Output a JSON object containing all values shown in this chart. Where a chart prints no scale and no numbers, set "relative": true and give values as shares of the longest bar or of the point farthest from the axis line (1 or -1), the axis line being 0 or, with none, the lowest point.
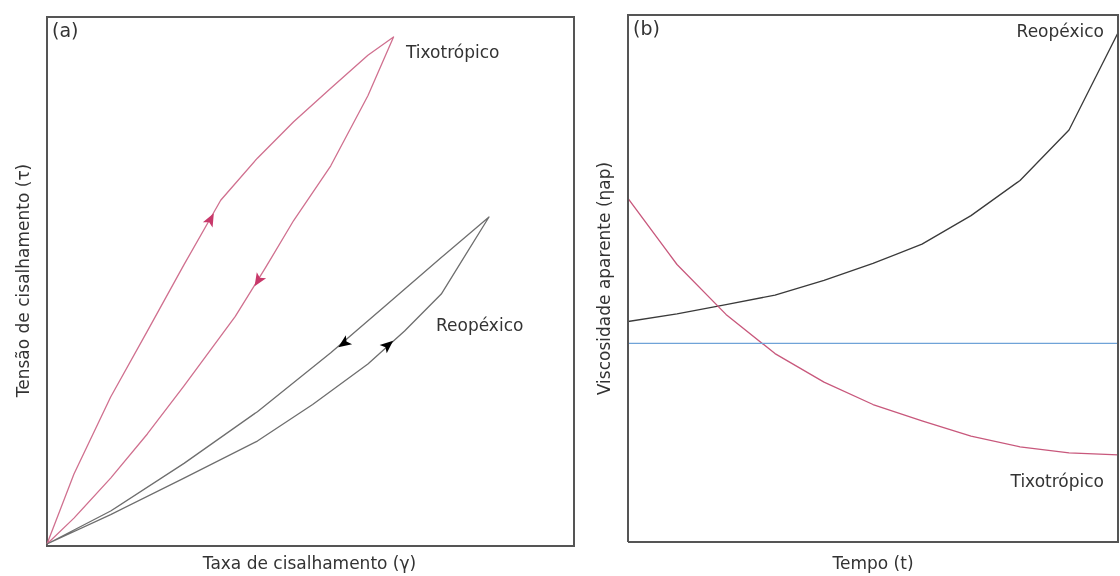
{
  "chart_data": [
    {
      "type": "other",
      "title": "(a)",
      "xlabel": "Taxa de cisalhamento (γ)",
      "ylabel": "Tensão de cisalhamento (τ)",
      "annotations": [
        "Tixotrópico",
        "Reopéxico"
      ]
    },
    {
      "type": "line",
      "title": "(b)",
      "xlabel": "Tempo (t)",
      "ylabel": "Viscosidade aparente (ηap)",
      "relative": true,
      "categories": [
        null,
        null,
        null,
        null,
        null,
        null,
        null,
        null,
        null,
        null,
        null
      ],
      "series": [
        {
          "name": "Reopéxico",
          "color": "#3a3a3a",
          "values": [
            0.433,
            0.448,
            0.466,
            0.485,
            0.514,
            0.547,
            0.585,
            0.641,
            0.71,
            0.809,
            1
          ]
        },
        {
          "name": "Tixotrópico",
          "color": "#c8587c",
          "values": [
            0.675,
            0.545,
            0.447,
            0.37,
            0.314,
            0.27,
            0.238,
            0.208,
            0.187,
            0.175,
            0.171
          ]
        },
        {
          "color": "#6fa3d8",
          "values": [
            0.39,
            0.39,
            0.39,
            0.39,
            0.39,
            0.39,
            0.39,
            0.39,
            0.39,
            0.39,
            0.39
          ]
        }
      ]
    }
  ]
}
